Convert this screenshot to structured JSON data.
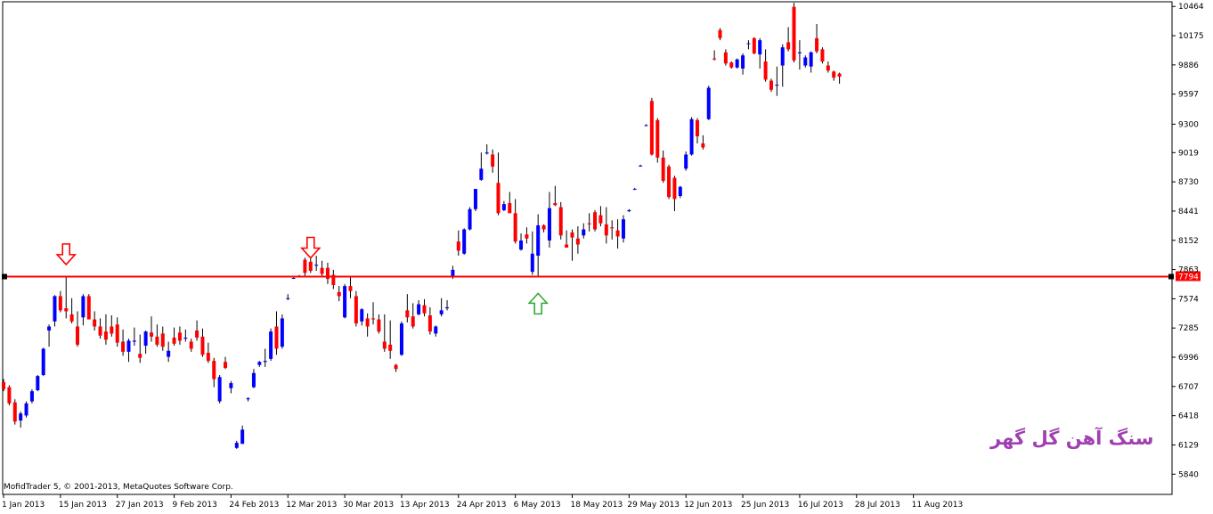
{
  "chart_data": {
    "type": "candlestick",
    "colors": {
      "up": "#0000ff",
      "down": "#ff0000",
      "level_line": "#ff0000",
      "grid": "none",
      "background": "#ffffff"
    },
    "y_ticks": [
      5840,
      6129,
      6418,
      6707,
      6996,
      7285,
      7574,
      7863,
      8152,
      8441,
      8730,
      9019,
      9300,
      9597,
      9886,
      10175,
      10464
    ],
    "ylim": [
      5640,
      10510
    ],
    "x_labels": [
      {
        "label": "1 Jan 2013",
        "index": 0
      },
      {
        "label": "15 Jan 2013",
        "index": 10
      },
      {
        "label": "27 Jan 2013",
        "index": 20
      },
      {
        "label": "9 Feb 2013",
        "index": 30
      },
      {
        "label": "24 Feb 2013",
        "index": 40
      },
      {
        "label": "12 Mar 2013",
        "index": 50
      },
      {
        "label": "30 Mar 2013",
        "index": 60
      },
      {
        "label": "13 Apr 2013",
        "index": 70
      },
      {
        "label": "24 Apr 2013",
        "index": 80
      },
      {
        "label": "6 May 2013",
        "index": 90
      },
      {
        "label": "18 May 2013",
        "index": 100
      },
      {
        "label": "29 May 2013",
        "index": 110
      },
      {
        "label": "12 Jun 2013",
        "index": 120
      },
      {
        "label": "25 Jun 2013",
        "index": 130
      },
      {
        "label": "16 Jul 2013",
        "index": 140
      },
      {
        "label": "28 Jul 2013",
        "index": 150
      },
      {
        "label": "11 Aug 2013",
        "index": 160
      }
    ],
    "ohlc": [
      [
        6750,
        6780,
        6660,
        6680
      ],
      [
        6700,
        6720,
        6520,
        6540
      ],
      [
        6550,
        6580,
        6330,
        6360
      ],
      [
        6370,
        6460,
        6300,
        6440
      ],
      [
        6420,
        6560,
        6400,
        6540
      ],
      [
        6560,
        6680,
        6540,
        6660
      ],
      [
        6670,
        6820,
        6660,
        6810
      ],
      [
        6820,
        7090,
        6810,
        7080
      ],
      [
        7260,
        7320,
        7100,
        7300
      ],
      [
        7350,
        7610,
        7300,
        7600
      ],
      [
        7600,
        7650,
        7440,
        7460
      ],
      [
        7480,
        7800,
        7380,
        7450
      ],
      [
        7420,
        7580,
        7330,
        7350
      ],
      [
        7300,
        7450,
        7100,
        7120
      ],
      [
        7390,
        7620,
        7310,
        7600
      ],
      [
        7600,
        7620,
        7370,
        7370
      ],
      [
        7370,
        7450,
        7260,
        7300
      ],
      [
        7300,
        7380,
        7180,
        7210
      ],
      [
        7250,
        7420,
        7120,
        7170
      ],
      [
        7300,
        7410,
        7200,
        7230
      ],
      [
        7320,
        7390,
        7100,
        7140
      ],
      [
        7150,
        7270,
        7010,
        7050
      ],
      [
        7050,
        7180,
        6950,
        7160
      ],
      [
        7150,
        7290,
        7110,
        7160
      ],
      [
        7030,
        7220,
        6940,
        6990
      ],
      [
        7110,
        7260,
        7030,
        7250
      ],
      [
        7240,
        7400,
        7150,
        7200
      ],
      [
        7200,
        7320,
        7100,
        7120
      ],
      [
        7230,
        7300,
        7060,
        7100
      ],
      [
        7000,
        7150,
        6950,
        7060
      ],
      [
        7190,
        7290,
        7110,
        7130
      ],
      [
        7240,
        7300,
        7120,
        7160
      ],
      [
        7180,
        7270,
        7150,
        7190
      ],
      [
        7150,
        7180,
        7050,
        7080
      ],
      [
        7260,
        7360,
        7160,
        7190
      ],
      [
        7200,
        7280,
        7000,
        7020
      ],
      [
        7040,
        7140,
        6940,
        6960
      ],
      [
        6960,
        6990,
        6700,
        6780
      ],
      [
        6560,
        6820,
        6540,
        6800
      ],
      [
        6950,
        7000,
        6880,
        6890
      ],
      [
        6690,
        6760,
        6640,
        6740
      ],
      [
        6100,
        6170,
        6090,
        6150
      ],
      [
        6140,
        6320,
        6140,
        6280
      ],
      [
        6580,
        6600,
        6560,
        6590
      ],
      [
        6700,
        6880,
        6690,
        6840
      ],
      [
        6920,
        6960,
        6900,
        6950
      ],
      [
        6950,
        7080,
        6900,
        6960
      ],
      [
        6980,
        7280,
        6960,
        7250
      ],
      [
        7300,
        7450,
        7020,
        7080
      ],
      [
        7100,
        7420,
        7080,
        7380
      ],
      [
        7580,
        7620,
        7560,
        7580
      ],
      [
        7780,
        7790,
        7770,
        7780
      ],
      [
        7800,
        7810,
        7790,
        7800
      ],
      [
        7960,
        7980,
        7800,
        7830
      ],
      [
        7940,
        7980,
        7830,
        7850
      ],
      [
        7900,
        8000,
        7850,
        7910
      ],
      [
        7880,
        7950,
        7790,
        7820
      ],
      [
        7880,
        7930,
        7720,
        7770
      ],
      [
        7810,
        7860,
        7670,
        7710
      ],
      [
        7640,
        7700,
        7550,
        7600
      ],
      [
        7390,
        7720,
        7380,
        7700
      ],
      [
        7700,
        7790,
        7580,
        7650
      ],
      [
        7600,
        7650,
        7300,
        7330
      ],
      [
        7350,
        7480,
        7310,
        7470
      ],
      [
        7380,
        7430,
        7200,
        7300
      ],
      [
        7380,
        7540,
        7320,
        7370
      ],
      [
        7370,
        7420,
        7230,
        7250
      ],
      [
        7150,
        7420,
        7050,
        7080
      ],
      [
        7120,
        7360,
        6980,
        7060
      ],
      [
        6920,
        6930,
        6850,
        6880
      ],
      [
        7020,
        7350,
        7010,
        7330
      ],
      [
        7460,
        7620,
        7340,
        7390
      ],
      [
        7400,
        7530,
        7280,
        7300
      ],
      [
        7420,
        7560,
        7410,
        7520
      ],
      [
        7510,
        7570,
        7400,
        7430
      ],
      [
        7410,
        7490,
        7220,
        7250
      ],
      [
        7230,
        7310,
        7200,
        7300
      ],
      [
        7420,
        7580,
        7400,
        7460
      ],
      [
        7480,
        7560,
        7460,
        7490
      ],
      [
        7790,
        7900,
        7770,
        7860
      ],
      [
        8140,
        8250,
        8000,
        8050
      ],
      [
        8020,
        8270,
        8010,
        8260
      ],
      [
        8260,
        8480,
        8250,
        8460
      ],
      [
        8460,
        8660,
        8440,
        8660
      ],
      [
        8750,
        9020,
        8740,
        8860
      ],
      [
        9010,
        9100,
        9000,
        9020
      ],
      [
        9000,
        9050,
        8820,
        8880
      ],
      [
        8720,
        9020,
        8400,
        8420
      ],
      [
        8450,
        8540,
        8440,
        8510
      ],
      [
        8520,
        8630,
        8420,
        8420
      ],
      [
        8420,
        8560,
        8120,
        8140
      ],
      [
        8060,
        8220,
        8050,
        8150
      ],
      [
        8210,
        8280,
        8120,
        8170
      ],
      [
        7840,
        8240,
        7810,
        8020
      ],
      [
        8000,
        8410,
        7800,
        8300
      ],
      [
        8300,
        8310,
        8230,
        8260
      ],
      [
        8150,
        8630,
        8080,
        8470
      ],
      [
        8520,
        8690,
        8490,
        8500
      ],
      [
        8480,
        8530,
        8160,
        8200
      ],
      [
        8110,
        8250,
        8080,
        8080
      ],
      [
        8230,
        8260,
        7950,
        8180
      ],
      [
        8170,
        8290,
        8020,
        8110
      ],
      [
        8200,
        8320,
        8170,
        8260
      ],
      [
        8320,
        8420,
        8240,
        8310
      ],
      [
        8430,
        8450,
        8240,
        8260
      ],
      [
        8400,
        8490,
        8290,
        8320
      ],
      [
        8310,
        8480,
        8120,
        8200
      ],
      [
        8280,
        8350,
        8160,
        8270
      ],
      [
        8250,
        8360,
        8070,
        8190
      ],
      [
        8170,
        8400,
        8130,
        8360
      ],
      [
        8440,
        8460,
        8430,
        8450
      ],
      [
        8660,
        8670,
        8650,
        8660
      ],
      [
        8890,
        8900,
        8880,
        8890
      ],
      [
        9290,
        9300,
        9280,
        9290
      ],
      [
        9530,
        9560,
        8990,
        9000
      ],
      [
        9340,
        9360,
        8920,
        8970
      ],
      [
        8970,
        9040,
        8720,
        8740
      ],
      [
        8880,
        8900,
        8560,
        8580
      ],
      [
        8770,
        8790,
        8440,
        8560
      ],
      [
        8590,
        8690,
        8570,
        8680
      ],
      [
        8860,
        9030,
        8840,
        9000
      ],
      [
        9000,
        9370,
        8990,
        9350
      ],
      [
        9340,
        9360,
        9110,
        9180
      ],
      [
        9110,
        9190,
        9050,
        9070
      ],
      [
        9350,
        9680,
        9340,
        9660
      ],
      [
        9950,
        10030,
        9930,
        9940
      ],
      [
        10230,
        10250,
        10130,
        10150
      ],
      [
        10010,
        10040,
        9880,
        9900
      ],
      [
        9910,
        9920,
        9850,
        9860
      ],
      [
        9860,
        9950,
        9850,
        9940
      ],
      [
        9850,
        10000,
        9790,
        9980
      ],
      [
        10100,
        10130,
        10040,
        10100
      ],
      [
        10150,
        10160,
        9990,
        10000
      ],
      [
        9990,
        10150,
        9850,
        10130
      ],
      [
        9920,
        10040,
        9720,
        9740
      ],
      [
        9730,
        9750,
        9620,
        9640
      ],
      [
        9690,
        9870,
        9580,
        9690
      ],
      [
        9880,
        10090,
        9670,
        10060
      ],
      [
        10110,
        10260,
        10020,
        10040
      ],
      [
        10460,
        10500,
        9910,
        9930
      ],
      [
        10000,
        10130,
        9840,
        10010
      ],
      [
        9880,
        9980,
        9860,
        9960
      ],
      [
        9870,
        10020,
        9810,
        10010
      ],
      [
        10150,
        10290,
        10000,
        10020
      ],
      [
        10040,
        10060,
        9900,
        9920
      ],
      [
        9880,
        9920,
        9810,
        9830
      ],
      [
        9820,
        9830,
        9730,
        9760
      ],
      [
        9800,
        9810,
        9700,
        9770
      ]
    ],
    "price_line": {
      "value": 7794,
      "label": "7794"
    },
    "annotations": [
      {
        "type": "down-arrow",
        "index": 11,
        "price": 8010,
        "color": "#ff0000"
      },
      {
        "type": "down-arrow",
        "index": 54,
        "price": 8075,
        "color": "#ff0000"
      },
      {
        "type": "up-arrow",
        "index": 94,
        "price": 7530,
        "color": "#33aa33"
      }
    ]
  },
  "copyright": "MofidTrader 5, © 2001-2013, MetaQuotes Software Corp.",
  "watermark": "سنگ آهن گل گهر"
}
